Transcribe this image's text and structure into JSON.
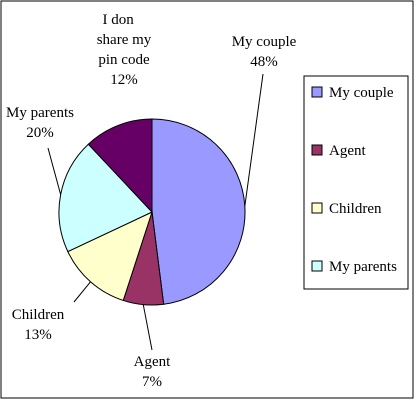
{
  "chart_data": {
    "type": "pie",
    "slices": [
      {
        "label": "My couple",
        "value": 48,
        "percent_label": "48%",
        "color": "#9999FF",
        "legend_label": "My couple"
      },
      {
        "label": "Agent",
        "value": 7,
        "percent_label": "7%",
        "color": "#993366",
        "legend_label": "Agent"
      },
      {
        "label": "Children",
        "value": 13,
        "percent_label": "13%",
        "color": "#FFFFCC",
        "legend_label": "Children"
      },
      {
        "label": "My parents",
        "value": 20,
        "percent_label": "20%",
        "color": "#CCFFFF",
        "legend_label": "My parents"
      },
      {
        "label": "I don share my pin code",
        "value": 12,
        "percent_label": "12%",
        "color": "#660066",
        "legend_label": null
      }
    ],
    "label_lines": {
      "My couple": [
        "My couple"
      ],
      "Agent": [
        "Agent"
      ],
      "Children": [
        "Children"
      ],
      "My parents": [
        "My parents"
      ],
      "I don share my pin code": [
        "I don",
        "share my",
        "pin code"
      ]
    },
    "legend_placement": "right",
    "start_angle_deg": 0,
    "direction": "clockwise"
  }
}
